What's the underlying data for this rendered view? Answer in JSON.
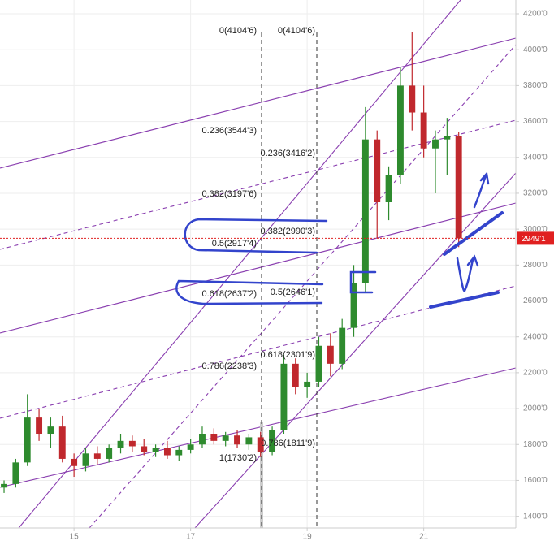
{
  "chart_data": {
    "type": "candlestick",
    "x": [
      13.8,
      14.0,
      14.2,
      14.4,
      14.6,
      14.8,
      15.0,
      15.2,
      15.4,
      15.6,
      15.8,
      16.0,
      16.2,
      16.4,
      16.6,
      16.8,
      17.0,
      17.2,
      17.4,
      17.6,
      17.8,
      18.0,
      18.2,
      18.4,
      18.6,
      18.8,
      19.0,
      19.2,
      19.4,
      19.6,
      19.8,
      20.0,
      20.2,
      20.4,
      20.6,
      20.8,
      21.0,
      21.2,
      21.4,
      21.6
    ],
    "open": [
      1560,
      1580,
      1700,
      1950,
      1860,
      1900,
      1720,
      1680,
      1750,
      1720,
      1780,
      1820,
      1790,
      1760,
      1780,
      1740,
      1770,
      1800,
      1860,
      1820,
      1850,
      1800,
      1840,
      1760,
      1880,
      2250,
      2120,
      2150,
      2350,
      2250,
      2450,
      2700,
      3500,
      3150,
      3300,
      3800,
      3650,
      3450,
      3500,
      3520
    ],
    "high": [
      1600,
      1720,
      2080,
      2000,
      1950,
      1960,
      1750,
      1780,
      1790,
      1800,
      1860,
      1850,
      1830,
      1800,
      1820,
      1790,
      1830,
      1900,
      1890,
      1870,
      1880,
      1860,
      1870,
      1900,
      2300,
      2280,
      2200,
      2400,
      2420,
      2500,
      2800,
      3680,
      3550,
      3350,
      3900,
      4100,
      3800,
      3550,
      3620,
      3540
    ],
    "low": [
      1530,
      1560,
      1680,
      1820,
      1780,
      1700,
      1620,
      1650,
      1690,
      1700,
      1750,
      1760,
      1740,
      1730,
      1720,
      1710,
      1750,
      1780,
      1800,
      1790,
      1780,
      1770,
      1730,
      1740,
      1860,
      2080,
      2060,
      2120,
      2180,
      2220,
      2400,
      2650,
      2950,
      3050,
      3250,
      3550,
      3400,
      3200,
      3300,
      2900
    ],
    "close": [
      1580,
      1700,
      1950,
      1860,
      1900,
      1720,
      1680,
      1750,
      1720,
      1780,
      1820,
      1790,
      1760,
      1780,
      1740,
      1770,
      1800,
      1860,
      1820,
      1850,
      1800,
      1840,
      1760,
      1880,
      2250,
      2120,
      2150,
      2350,
      2250,
      2450,
      2700,
      3500,
      3150,
      3300,
      3800,
      3650,
      3450,
      3500,
      3520,
      2949.1
    ],
    "up_color": "#2e8b2e",
    "down_color": "#c0282d",
    "xlim": [
      13.73,
      22.58
    ],
    "xticks": [
      15,
      17,
      19,
      21
    ],
    "ylim": [
      1335,
      4277
    ],
    "yticks": [
      {
        "value": 1400,
        "label": "1400'0"
      },
      {
        "value": 1600,
        "label": "1600'0"
      },
      {
        "value": 1800,
        "label": "1800'0"
      },
      {
        "value": 2000,
        "label": "2000'0"
      },
      {
        "value": 2200,
        "label": "2200'0"
      },
      {
        "value": 2400,
        "label": "2400'0"
      },
      {
        "value": 2600,
        "label": "2600'0"
      },
      {
        "value": 2800,
        "label": "2800'0"
      },
      {
        "value": 3000,
        "label": "3000'0"
      },
      {
        "value": 3200,
        "label": "3200'0"
      },
      {
        "value": 3400,
        "label": "3400'0"
      },
      {
        "value": 3600,
        "label": "3600'0"
      },
      {
        "value": 3800,
        "label": "3800'0"
      },
      {
        "value": 4000,
        "label": "4000'0"
      },
      {
        "value": 4200,
        "label": "4200'0"
      }
    ],
    "last_price": {
      "value": 2949.1,
      "label": "2949'1",
      "color": "#e02020"
    },
    "annotations": [
      "0(4104'6)",
      "0(4104'6)",
      "0.236(3544'3)",
      "0.236(3416'2)",
      "0.382(3197'6)",
      "0.382(2990'3)",
      "0.5(2917'4)",
      "0.618(2637'2)",
      "0.5(2646'1)",
      "0.618(2301'9)",
      "0.786(2238'3)",
      "0.786(1811'9)",
      "1(1730'2)"
    ]
  }
}
